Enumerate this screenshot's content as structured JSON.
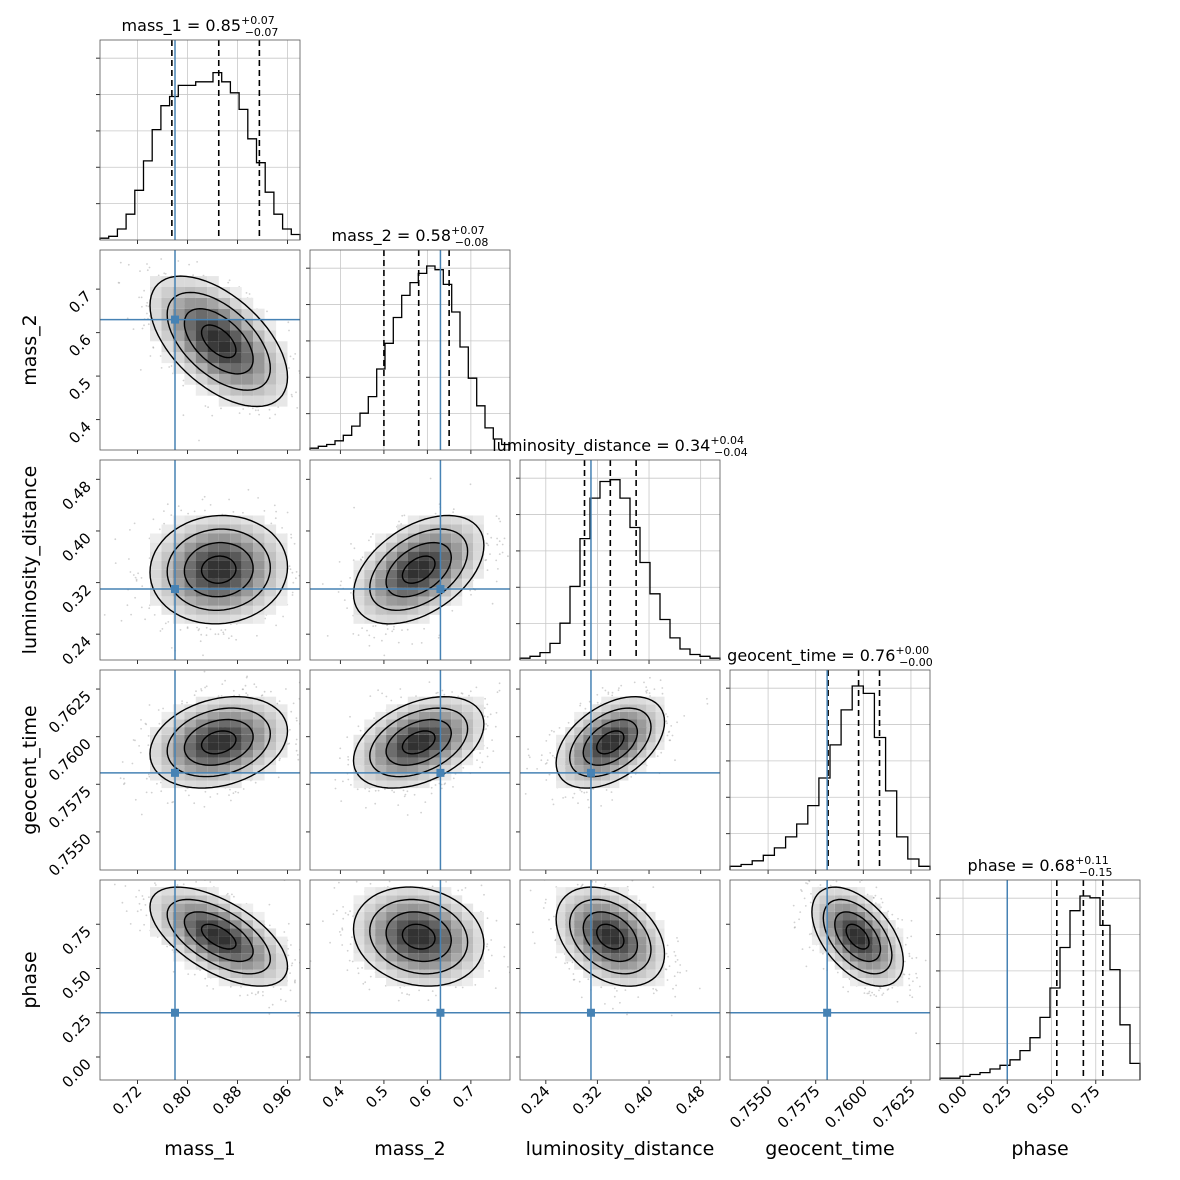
{
  "chart_data": {
    "type": "corner",
    "parameters": [
      "mass_1",
      "mass_2",
      "luminosity_distance",
      "geocent_time",
      "phase"
    ],
    "axis_labels": [
      "mass_1",
      "mass_2",
      "luminosity_distance",
      "geocent_time",
      "phase"
    ],
    "ranges": [
      [
        0.66,
        0.98
      ],
      [
        0.33,
        0.79
      ],
      [
        0.2,
        0.51
      ],
      [
        0.753,
        0.7635
      ],
      [
        -0.13,
        1.0
      ]
    ],
    "ticks": [
      [
        0.72,
        0.8,
        0.88,
        0.96
      ],
      [
        0.4,
        0.5,
        0.6,
        0.7
      ],
      [
        0.24,
        0.32,
        0.4,
        0.48
      ],
      [
        0.755,
        0.7575,
        0.76,
        0.7625
      ],
      [
        0.0,
        0.25,
        0.5,
        0.75
      ]
    ],
    "tick_labels": [
      [
        "0.72",
        "0.80",
        "0.88",
        "0.96"
      ],
      [
        "0.4",
        "0.5",
        "0.6",
        "0.7"
      ],
      [
        "0.24",
        "0.32",
        "0.40",
        "0.48"
      ],
      [
        "0.7550",
        "0.7575",
        "0.7600",
        "0.7625"
      ],
      [
        "0.00",
        "0.25",
        "0.50",
        "0.75"
      ]
    ],
    "truths": [
      0.78,
      0.63,
      0.31,
      0.7581,
      0.25
    ],
    "titles": [
      {
        "name": "mass_1",
        "value": "0.85",
        "plus": "+0.07",
        "minus": "−0.07"
      },
      {
        "name": "mass_2",
        "value": "0.58",
        "plus": "+0.07",
        "minus": "−0.08"
      },
      {
        "name": "luminosity_distance",
        "value": "0.34",
        "plus": "+0.04",
        "minus": "−0.04"
      },
      {
        "name": "geocent_time",
        "value": "0.76",
        "plus": "+0.00",
        "minus": "−0.00"
      },
      {
        "name": "phase",
        "value": "0.68",
        "plus": "+0.11",
        "minus": "−0.15"
      }
    ],
    "quantiles": [
      [
        0.775,
        0.85,
        0.915
      ],
      [
        0.5,
        0.58,
        0.65
      ],
      [
        0.3,
        0.34,
        0.38
      ],
      [
        0.75815,
        0.75975,
        0.76085
      ],
      [
        0.53,
        0.68,
        0.79
      ]
    ],
    "hist_values": [
      [
        0.01,
        0.02,
        0.06,
        0.14,
        0.27,
        0.43,
        0.6,
        0.73,
        0.78,
        0.84,
        0.84,
        0.86,
        0.86,
        0.91,
        0.86,
        0.8,
        0.71,
        0.55,
        0.42,
        0.26,
        0.14,
        0.06,
        0.03
      ],
      [
        0.01,
        0.02,
        0.03,
        0.05,
        0.08,
        0.13,
        0.2,
        0.29,
        0.44,
        0.58,
        0.72,
        0.84,
        0.91,
        0.96,
        1.0,
        0.98,
        0.9,
        0.75,
        0.56,
        0.39,
        0.24,
        0.12,
        0.06,
        0.03
      ],
      [
        0.01,
        0.02,
        0.04,
        0.09,
        0.2,
        0.4,
        0.66,
        0.88,
        0.97,
        0.98,
        0.88,
        0.72,
        0.53,
        0.36,
        0.22,
        0.12,
        0.06,
        0.03,
        0.02,
        0.01
      ],
      [
        0.02,
        0.03,
        0.05,
        0.08,
        0.12,
        0.18,
        0.25,
        0.35,
        0.5,
        0.68,
        0.87,
        1.0,
        0.96,
        0.72,
        0.43,
        0.18,
        0.06,
        0.02
      ],
      [
        0.01,
        0.01,
        0.02,
        0.03,
        0.04,
        0.06,
        0.08,
        0.11,
        0.16,
        0.23,
        0.34,
        0.5,
        0.72,
        0.92,
        1.0,
        0.99,
        0.84,
        0.6,
        0.3,
        0.09
      ]
    ]
  }
}
